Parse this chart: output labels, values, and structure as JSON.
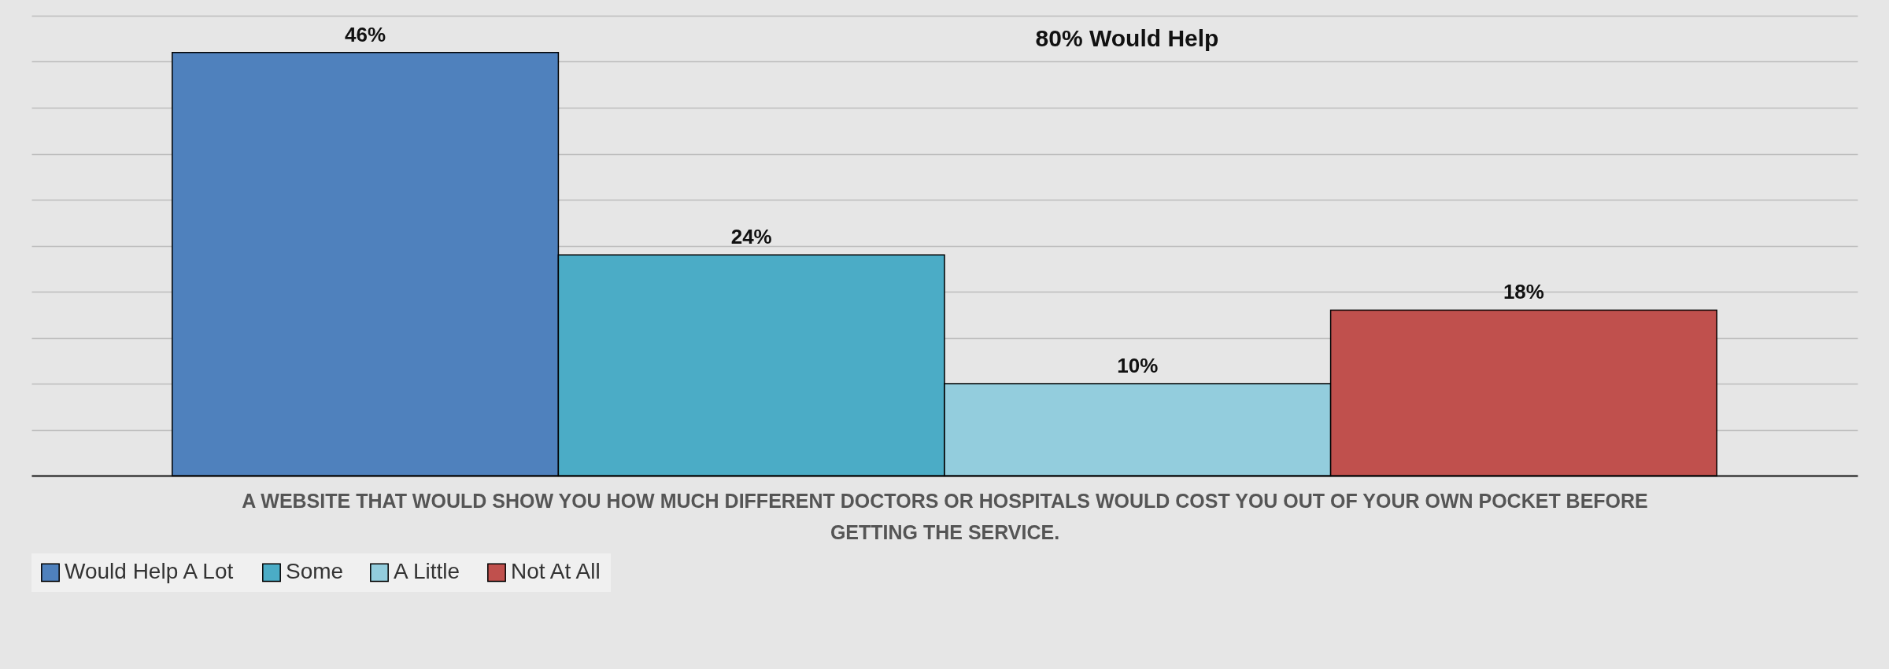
{
  "chart_data": {
    "type": "bar",
    "categories": [
      null
    ],
    "xlabel": "A WEBSITE THAT WOULD SHOW YOU HOW MUCH DIFFERENT DOCTORS OR HOSPITALS WOULD COST YOU OUT OF YOUR OWN POCKET BEFORE GETTING THE SERVICE.",
    "series": [
      {
        "name": "Would Help A Lot",
        "color": "#4f81bd",
        "values": [
          46
        ],
        "value_labels": [
          "46%"
        ]
      },
      {
        "name": "Some",
        "color": "#4bacc6",
        "values": [
          24
        ],
        "value_labels": [
          "24%"
        ]
      },
      {
        "name": "A Little",
        "color": "#93cddd",
        "values": [
          10
        ],
        "value_labels": [
          "10%"
        ]
      },
      {
        "name": "Not At All",
        "color": "#c0504d",
        "values": [
          18
        ],
        "value_labels": [
          "18%"
        ]
      }
    ],
    "ylim": [
      0,
      50
    ],
    "yticks": [
      0,
      5,
      10,
      15,
      20,
      25,
      30,
      35,
      40,
      45,
      50
    ],
    "tick_labels": "x",
    "grid": "y",
    "legend": "bottom",
    "annotations": [
      "80% Would Help"
    ]
  }
}
